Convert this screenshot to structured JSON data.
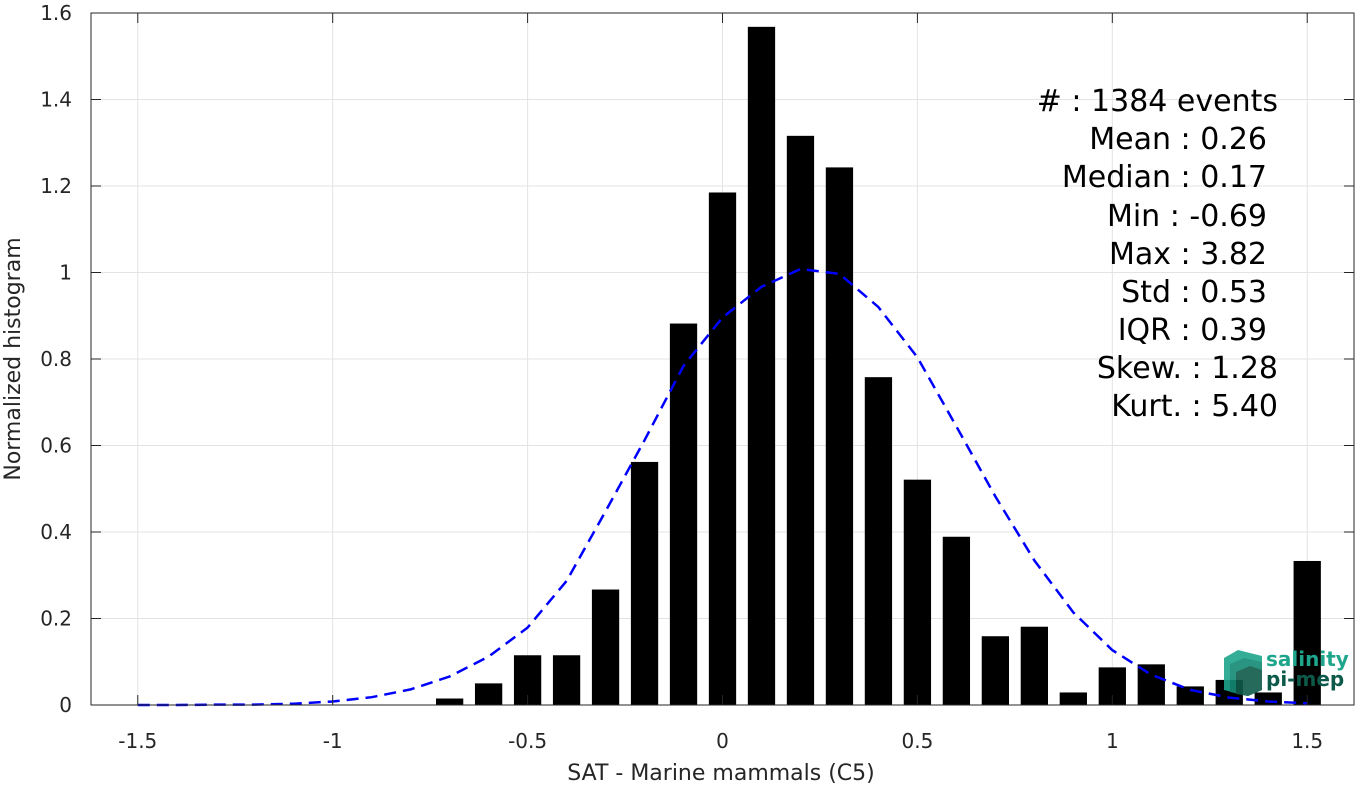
{
  "chart_data": {
    "type": "bar",
    "xlabel": "SAT - Marine mammals (C5)",
    "ylabel": "Normalized histogram",
    "xlim": [
      -1.62,
      1.62
    ],
    "ylim": [
      0,
      1.6
    ],
    "xticks": [
      -1.5,
      -1,
      -0.5,
      0,
      0.5,
      1,
      1.5
    ],
    "xtick_labels": [
      "-1.5",
      "-1",
      "-0.5",
      "0",
      "0.5",
      "1",
      "1.5"
    ],
    "yticks": [
      0,
      0.2,
      0.4,
      0.6,
      0.8,
      1,
      1.2,
      1.4,
      1.6
    ],
    "ytick_labels": [
      "0",
      "0.2",
      "0.4",
      "0.6",
      "0.8",
      "1",
      "1.2",
      "1.4",
      "1.6"
    ],
    "grid": true,
    "bar_color": "#000000",
    "bar_width": 0.07,
    "bars": [
      {
        "x": -0.7,
        "value": 0.015
      },
      {
        "x": -0.6,
        "value": 0.05
      },
      {
        "x": -0.5,
        "value": 0.115
      },
      {
        "x": -0.4,
        "value": 0.115
      },
      {
        "x": -0.3,
        "value": 0.267
      },
      {
        "x": -0.2,
        "value": 0.562
      },
      {
        "x": -0.1,
        "value": 0.882
      },
      {
        "x": 0.0,
        "value": 1.185
      },
      {
        "x": 0.1,
        "value": 1.568
      },
      {
        "x": 0.2,
        "value": 1.316
      },
      {
        "x": 0.3,
        "value": 1.243
      },
      {
        "x": 0.4,
        "value": 0.758
      },
      {
        "x": 0.5,
        "value": 0.521
      },
      {
        "x": 0.6,
        "value": 0.389
      },
      {
        "x": 0.7,
        "value": 0.159
      },
      {
        "x": 0.8,
        "value": 0.181
      },
      {
        "x": 0.9,
        "value": 0.029
      },
      {
        "x": 1.0,
        "value": 0.087
      },
      {
        "x": 1.1,
        "value": 0.094
      },
      {
        "x": 1.2,
        "value": 0.043
      },
      {
        "x": 1.3,
        "value": 0.058
      },
      {
        "x": 1.4,
        "value": 0.029
      },
      {
        "x": 1.5,
        "value": 0.333
      }
    ],
    "fit_curve": {
      "style": "dashed",
      "color": "#0000ff",
      "x": [
        -1.5,
        -1.4,
        -1.3,
        -1.2,
        -1.1,
        -1.0,
        -0.9,
        -0.8,
        -0.7,
        -0.6,
        -0.5,
        -0.4,
        -0.3,
        -0.2,
        -0.1,
        0.0,
        0.1,
        0.2,
        0.3,
        0.4,
        0.5,
        0.6,
        0.7,
        0.8,
        0.9,
        1.0,
        1.1,
        1.2,
        1.3,
        1.4,
        1.5
      ],
      "y": [
        0.0,
        0.0,
        0.001,
        0.001,
        0.003,
        0.008,
        0.018,
        0.036,
        0.066,
        0.112,
        0.179,
        0.287,
        0.448,
        0.612,
        0.784,
        0.896,
        0.967,
        1.008,
        0.997,
        0.92,
        0.804,
        0.644,
        0.482,
        0.334,
        0.214,
        0.127,
        0.07,
        0.035,
        0.017,
        0.008,
        0.004
      ]
    }
  },
  "stats": {
    "count": "#  : 1384 events",
    "mean": "Mean : 0.26",
    "median": "Median : 0.17",
    "min": "Min : -0.69",
    "max": "Max : 3.82",
    "std": "Std : 0.53",
    "iqr": "IQR : 0.39",
    "skew": "Skew. : 1.28",
    "kurt": "Kurt. : 5.40"
  },
  "logo": {
    "line1": "salinity",
    "line2": "pi-mep",
    "color_primary": "#1fa58c",
    "color_secondary": "#0e5a4a"
  }
}
